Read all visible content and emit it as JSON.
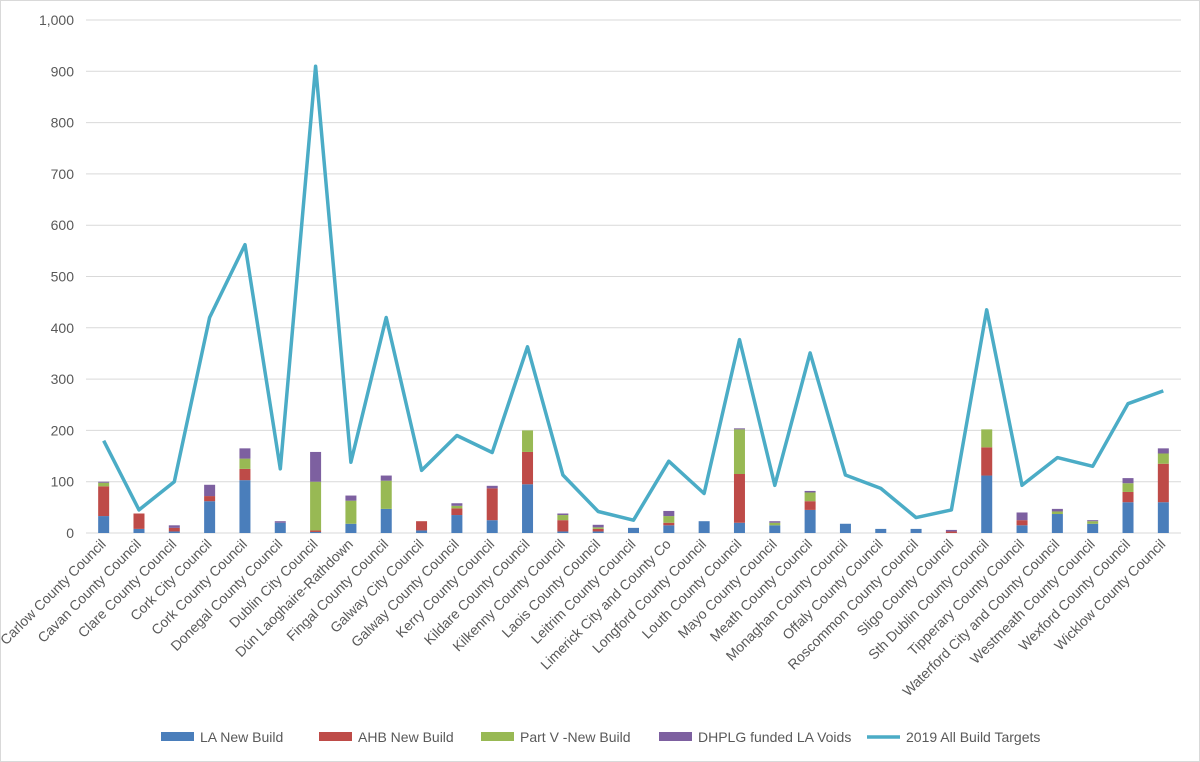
{
  "chart_data": {
    "type": "bar",
    "stacked": true,
    "categories": [
      "Carlow County Council",
      "Cavan County Council",
      "Clare County Council",
      "Cork City Council",
      "Cork County Council",
      "Donegal County Council",
      "Dublin City Council",
      "Dún Laoghaire-Rathdown",
      "Fingal County Council",
      "Galway City Council",
      "Galway County Council",
      "Kerry County Council",
      "Kildare County Council",
      "Kilkenny County Council",
      "Laois County Council",
      "Leitrim County Council",
      "Limerick City and County Co",
      "Longford County Council",
      "Louth County Council",
      "Mayo County Council",
      "Meath County Council",
      "Monaghan County Council",
      "Offaly County Council",
      "Roscommon County Council",
      "Sligo County Council",
      "Sth Dublin County Council",
      "Tipperary County Council",
      "Waterford City and County Council",
      "Westmeath County Council",
      "Wexford County Council",
      "Wicklow County Council"
    ],
    "series": [
      {
        "name": "LA New Build",
        "color": "#4a7ebb",
        "kind": "bar",
        "values": [
          33,
          8,
          3,
          62,
          103,
          20,
          2,
          18,
          47,
          5,
          35,
          25,
          95,
          3,
          3,
          10,
          15,
          23,
          20,
          15,
          45,
          18,
          8,
          8,
          0,
          112,
          15,
          37,
          18,
          60,
          60
        ]
      },
      {
        "name": "AHB New Build",
        "color": "#be4b48",
        "kind": "bar",
        "values": [
          58,
          30,
          7,
          10,
          22,
          0,
          3,
          0,
          0,
          18,
          13,
          62,
          63,
          22,
          5,
          0,
          5,
          0,
          95,
          0,
          17,
          0,
          0,
          0,
          3,
          55,
          10,
          0,
          0,
          20,
          75
        ]
      },
      {
        "name": "Part V -New Build",
        "color": "#98b954",
        "kind": "bar",
        "values": [
          7,
          0,
          0,
          0,
          20,
          0,
          95,
          45,
          55,
          0,
          5,
          0,
          42,
          10,
          3,
          0,
          13,
          0,
          87,
          5,
          17,
          0,
          0,
          0,
          0,
          35,
          0,
          5,
          5,
          17,
          20
        ]
      },
      {
        "name": "DHPLG funded LA Voids",
        "color": "#7d60a0",
        "kind": "bar",
        "values": [
          2,
          0,
          5,
          22,
          20,
          3,
          58,
          10,
          10,
          0,
          5,
          5,
          0,
          3,
          5,
          0,
          10,
          0,
          2,
          3,
          3,
          0,
          0,
          0,
          3,
          0,
          15,
          5,
          2,
          10,
          10
        ]
      },
      {
        "name": "2019 All Build Targets",
        "color": "#4bacc6",
        "kind": "line",
        "values": [
          180,
          45,
          100,
          420,
          562,
          125,
          910,
          138,
          420,
          122,
          190,
          157,
          363,
          113,
          42,
          25,
          140,
          77,
          377,
          93,
          351,
          113,
          87,
          30,
          45,
          435,
          93,
          147,
          130,
          252,
          277
        ]
      }
    ],
    "ylim": [
      0,
      1000
    ],
    "yticks": [
      "0",
      "100",
      "200",
      "300",
      "400",
      "500",
      "600",
      "700",
      "800",
      "900",
      "1,000"
    ],
    "ytick_values": [
      0,
      100,
      200,
      300,
      400,
      500,
      600,
      700,
      800,
      900,
      1000
    ],
    "grid": "horizontal",
    "legend_position": "bottom"
  }
}
